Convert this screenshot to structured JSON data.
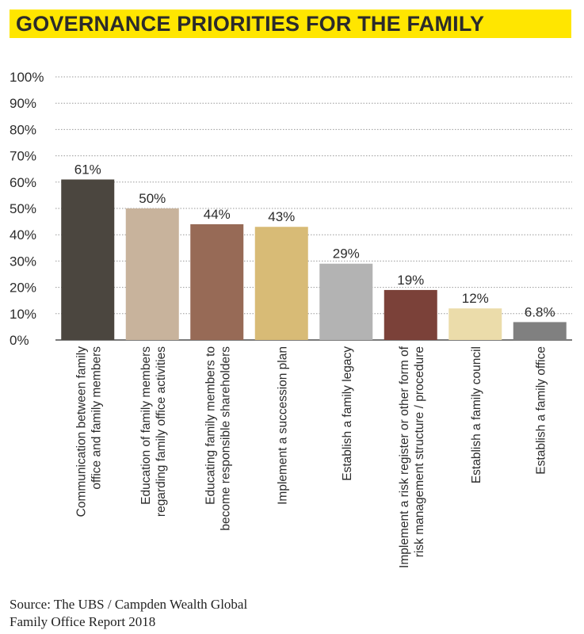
{
  "chart_data": {
    "type": "bar",
    "title": "GOVERNANCE PRIORITIES FOR THE FAMILY",
    "categories": [
      [
        "Communication between family",
        "office and family members"
      ],
      [
        "Education of family members",
        "regarding family office activities"
      ],
      [
        "Educating family members to",
        "become responsible shareholders"
      ],
      [
        "Implement a succession plan"
      ],
      [
        "Establish a family legacy"
      ],
      [
        "Implement a risk register or other form of",
        "risk management structure / procedure"
      ],
      [
        "Establish a family council"
      ],
      [
        "Establish a family office"
      ]
    ],
    "values": [
      61,
      50,
      44,
      43,
      29,
      19,
      12,
      6.8
    ],
    "value_labels": [
      "61%",
      "50%",
      "44%",
      "43%",
      "29%",
      "19%",
      "12%",
      "6.8%"
    ],
    "colors": [
      "#4b463f",
      "#c8b39c",
      "#976a56",
      "#d8bb76",
      "#b3b3b3",
      "#7b4139",
      "#ebdcaa",
      "#808080"
    ],
    "yticks": [
      "0%",
      "10%",
      "20%",
      "30%",
      "40%",
      "50%",
      "60%",
      "70%",
      "80%",
      "90%",
      "100%"
    ],
    "ylim": [
      0,
      100
    ],
    "grid": true,
    "title_bg": "#ffe600"
  },
  "source": {
    "line1": "Source: The UBS / Campden Wealth Global",
    "line2": "Family Office Report 2018"
  }
}
